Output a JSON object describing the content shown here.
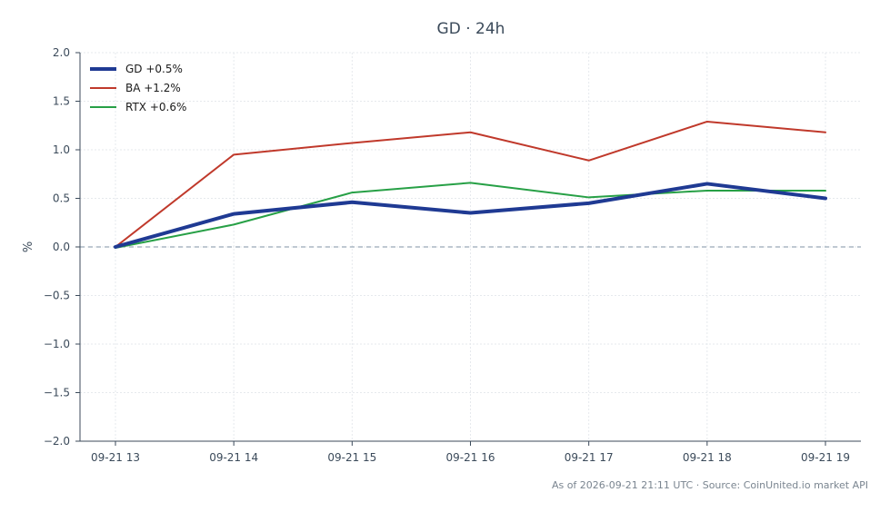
{
  "chart_data": {
    "type": "line",
    "title": "GD · 24h",
    "xlabel": "",
    "ylabel": "%",
    "categories": [
      "09-21 13",
      "09-21 14",
      "09-21 15",
      "09-21 16",
      "09-21 17",
      "09-21 18",
      "09-21 19"
    ],
    "ylim": [
      -2.0,
      2.0
    ],
    "yticks": [
      "2.0",
      "1.5",
      "1.0",
      "0.5",
      "0.0",
      "−0.5",
      "−1.0",
      "−1.5",
      "−2.0"
    ],
    "grid": true,
    "legend_position": "top-left",
    "baseline": 0.0,
    "series": [
      {
        "name": "GD +0.5%",
        "color": "#1f3a93",
        "width": 4,
        "values": [
          0.0,
          0.34,
          0.46,
          0.35,
          0.45,
          0.65,
          0.5
        ]
      },
      {
        "name": "BA +1.2%",
        "color": "#c0392b",
        "width": 2,
        "values": [
          0.0,
          0.95,
          1.07,
          1.18,
          0.89,
          1.29,
          1.18
        ]
      },
      {
        "name": "RTX +0.6%",
        "color": "#27a046",
        "width": 2,
        "values": [
          -0.01,
          0.23,
          0.56,
          0.66,
          0.51,
          0.58,
          0.58
        ]
      }
    ]
  },
  "footer": "As of 2026-09-21 21:11 UTC · Source: CoinUnited.io market API"
}
